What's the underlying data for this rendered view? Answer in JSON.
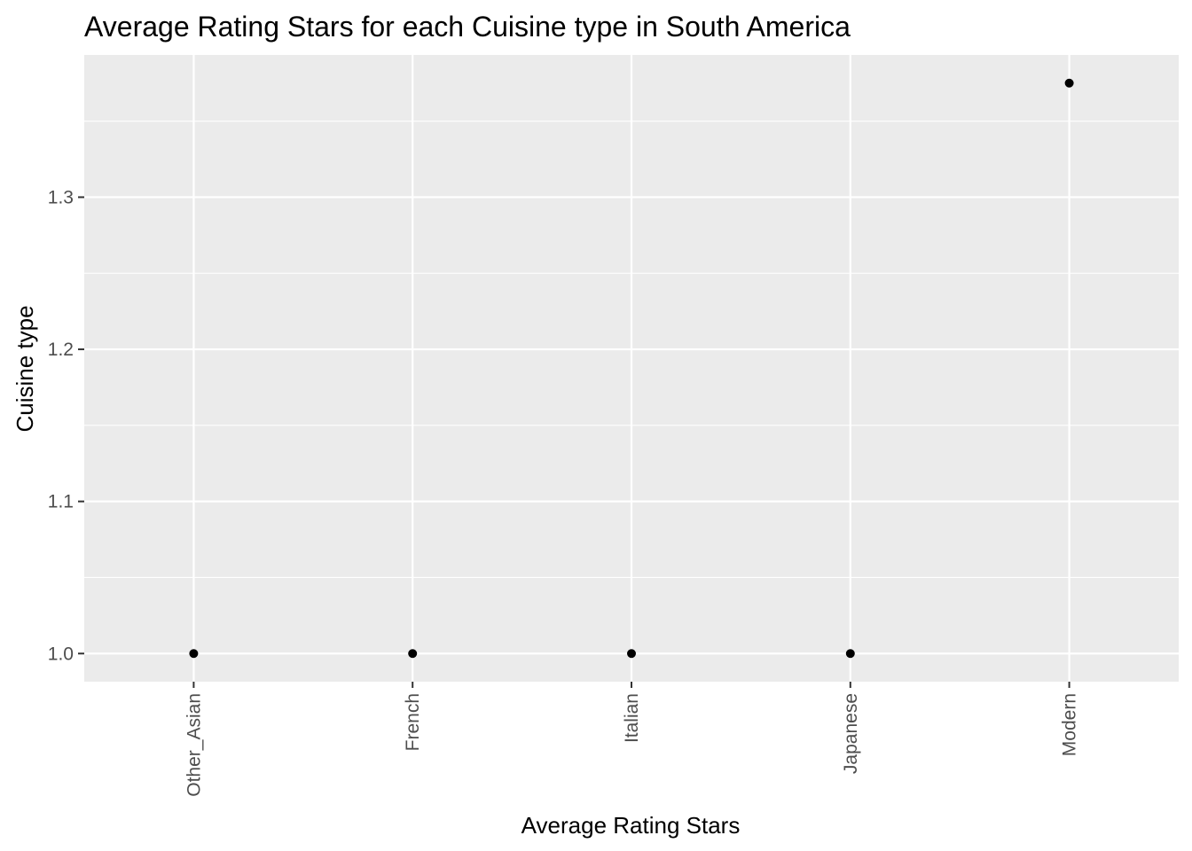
{
  "chart_data": {
    "type": "scatter",
    "title": "Average Rating Stars for each Cuisine type in South America",
    "xlabel": "Average Rating Stars",
    "ylabel": "Cuisine type",
    "categories": [
      "Other_Asian",
      "French",
      "Italian",
      "Japanese",
      "Modern"
    ],
    "values": [
      1.0,
      1.0,
      1.0,
      1.0,
      1.375
    ],
    "ylim": [
      0.9815,
      1.3935
    ],
    "yticks": [
      1.0,
      1.1,
      1.2,
      1.3
    ],
    "ytick_labels": [
      "1.0",
      "1.1",
      "1.2",
      "1.3"
    ],
    "grid": true,
    "panel_color": "#ebebeb",
    "grid_color": "#ffffff",
    "point_color": "#000000"
  }
}
